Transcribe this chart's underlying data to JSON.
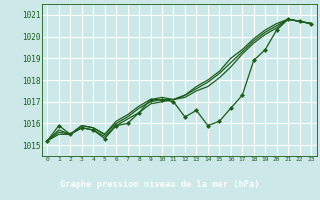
{
  "title": "Graphe pression niveau de la mer (hPa)",
  "bg_color": "#cce8e8",
  "footer_color": "#2d6e2d",
  "grid_color": "#ffffff",
  "line_color": "#1a5c1a",
  "x_labels": [
    "0",
    "1",
    "2",
    "3",
    "4",
    "5",
    "6",
    "7",
    "8",
    "9",
    "10",
    "11",
    "12",
    "13",
    "14",
    "15",
    "16",
    "17",
    "18",
    "19",
    "20",
    "21",
    "22",
    "23"
  ],
  "ylim": [
    1014.5,
    1021.5
  ],
  "yticks": [
    1015,
    1016,
    1017,
    1018,
    1019,
    1020,
    1021
  ],
  "series_zigzag": [
    1015.2,
    1015.9,
    1015.5,
    1015.8,
    1015.7,
    1015.3,
    1015.9,
    1016.0,
    1016.5,
    1017.1,
    1017.1,
    1017.0,
    1016.3,
    1016.6,
    1015.9,
    1016.1,
    1016.7,
    1017.3,
    1018.9,
    1019.4,
    1020.3,
    1020.8,
    1020.7,
    1020.6
  ],
  "series_line1": [
    1015.2,
    1015.5,
    1015.5,
    1015.8,
    1015.7,
    1015.4,
    1015.9,
    1016.2,
    1016.5,
    1016.9,
    1017.0,
    1017.1,
    1017.2,
    1017.5,
    1017.7,
    1018.1,
    1018.6,
    1019.2,
    1019.7,
    1020.1,
    1020.4,
    1020.8,
    1020.7,
    1020.6
  ],
  "series_line2": [
    1015.2,
    1015.6,
    1015.5,
    1015.9,
    1015.8,
    1015.5,
    1016.0,
    1016.3,
    1016.7,
    1017.0,
    1017.1,
    1017.1,
    1017.3,
    1017.6,
    1017.9,
    1018.3,
    1018.8,
    1019.3,
    1019.8,
    1020.2,
    1020.5,
    1020.8,
    1020.7,
    1020.6
  ],
  "series_line3": [
    1015.2,
    1015.7,
    1015.5,
    1015.9,
    1015.8,
    1015.5,
    1016.1,
    1016.4,
    1016.8,
    1017.1,
    1017.2,
    1017.1,
    1017.3,
    1017.7,
    1018.0,
    1018.4,
    1019.0,
    1019.4,
    1019.9,
    1020.3,
    1020.6,
    1020.8,
    1020.7,
    1020.6
  ]
}
